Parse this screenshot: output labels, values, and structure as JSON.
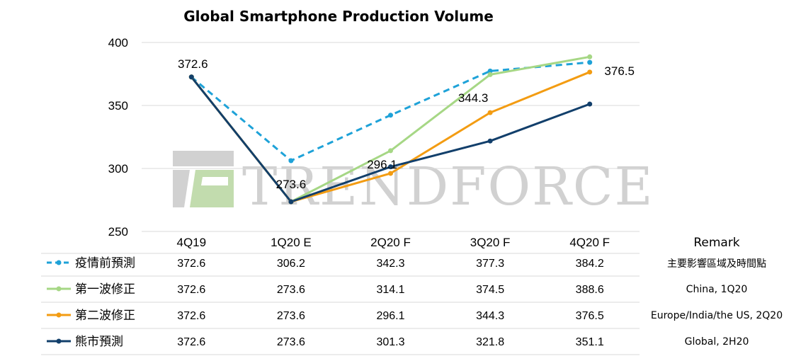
{
  "chart_data": {
    "type": "line",
    "title": "Global Smartphone Production Volume",
    "categories": [
      "4Q19",
      "1Q20 E",
      "2Q20 F",
      "3Q20 F",
      "4Q20 F"
    ],
    "ylim": [
      250,
      400
    ],
    "yticks": [
      250,
      300,
      350,
      400
    ],
    "grid": true,
    "remark_header": "Remark",
    "series": [
      {
        "name": "疫情前預測",
        "values": [
          372.6,
          306.2,
          342.3,
          377.3,
          384.2
        ],
        "color": "#1ea2d8",
        "dashed": true,
        "remark": "主要影響區域及時間點"
      },
      {
        "name": "第一波修正",
        "values": [
          372.6,
          273.6,
          314.1,
          374.5,
          388.6
        ],
        "color": "#a6d785",
        "dashed": false,
        "remark": "China, 1Q20"
      },
      {
        "name": "第二波修正",
        "values": [
          372.6,
          273.6,
          296.1,
          344.3,
          376.5
        ],
        "color": "#f39c12",
        "dashed": false,
        "remark": "Europe/India/the US, 2Q20"
      },
      {
        "name": "熊市預測",
        "values": [
          372.6,
          273.6,
          301.3,
          321.8,
          351.1
        ],
        "color": "#123f6b",
        "dashed": false,
        "remark": "Global, 2H20"
      }
    ],
    "annotations": [
      {
        "series": 3,
        "index": 0,
        "text": "372.6"
      },
      {
        "series": 3,
        "index": 1,
        "text": "273.6"
      },
      {
        "series": 2,
        "index": 2,
        "text": "296.1"
      },
      {
        "series": 2,
        "index": 3,
        "text": "344.3"
      },
      {
        "series": 2,
        "index": 4,
        "text": "376.5"
      }
    ],
    "watermark": "TRENDFORCE"
  }
}
